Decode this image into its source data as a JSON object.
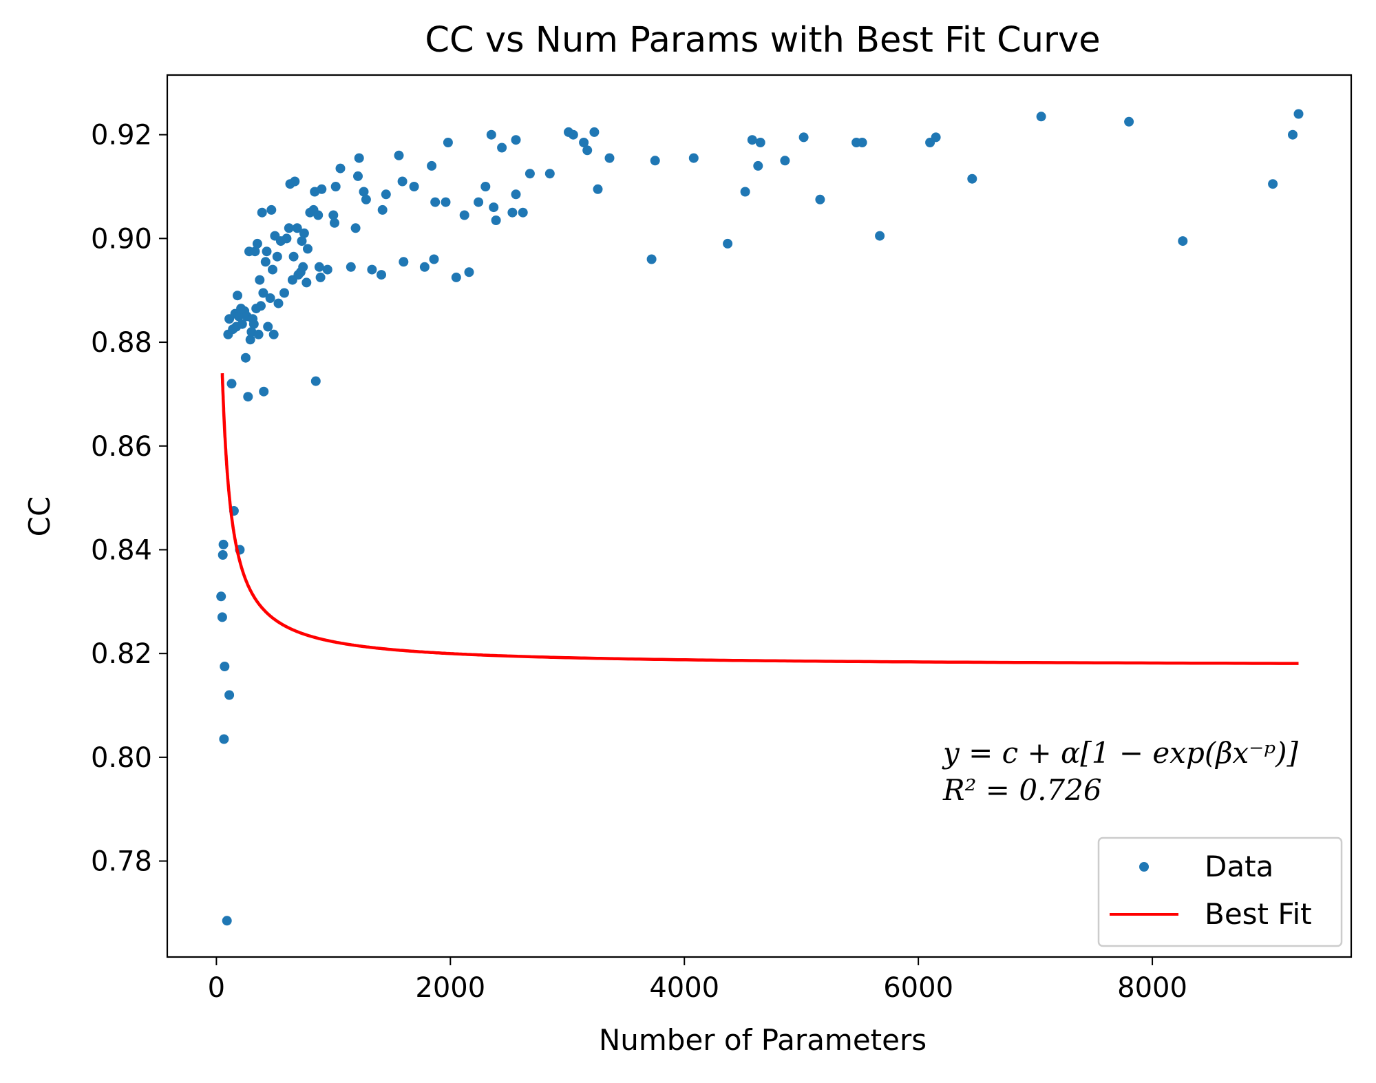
{
  "chart_data": {
    "type": "scatter",
    "title": "CC vs Num Params with Best Fit Curve",
    "xlabel": "Number of Parameters",
    "ylabel": "CC",
    "xlim": [
      -420,
      9700
    ],
    "ylim": [
      0.7615,
      0.9315
    ],
    "xticks": [
      0,
      2000,
      4000,
      6000,
      8000
    ],
    "xtick_labels": [
      "0",
      "2000",
      "4000",
      "6000",
      "8000"
    ],
    "yticks": [
      0.78,
      0.8,
      0.82,
      0.84,
      0.86,
      0.88,
      0.9,
      0.92
    ],
    "ytick_labels": [
      "0.78",
      "0.80",
      "0.82",
      "0.84",
      "0.86",
      "0.88",
      "0.90",
      "0.92"
    ],
    "grid": false,
    "legend_position": "lower-right",
    "colors": {
      "data": "#1f77b4",
      "fit": "#ff0000"
    },
    "annotation": {
      "equation": "y = c + α[1 − exp(βx⁻ᵖ)]",
      "r2": "R² = 0.726"
    },
    "series": [
      {
        "name": "Data",
        "kind": "scatter",
        "points": [
          [
            40,
            0.831
          ],
          [
            50,
            0.827
          ],
          [
            55,
            0.839
          ],
          [
            60,
            0.841
          ],
          [
            65,
            0.8035
          ],
          [
            70,
            0.8175
          ],
          [
            90,
            0.7685
          ],
          [
            110,
            0.812
          ],
          [
            100,
            0.8815
          ],
          [
            110,
            0.8845
          ],
          [
            130,
            0.872
          ],
          [
            140,
            0.8825
          ],
          [
            150,
            0.8475
          ],
          [
            160,
            0.8855
          ],
          [
            170,
            0.883
          ],
          [
            180,
            0.889
          ],
          [
            190,
            0.885
          ],
          [
            200,
            0.84
          ],
          [
            210,
            0.8865
          ],
          [
            220,
            0.8835
          ],
          [
            240,
            0.886
          ],
          [
            250,
            0.877
          ],
          [
            260,
            0.885
          ],
          [
            270,
            0.8695
          ],
          [
            280,
            0.8975
          ],
          [
            290,
            0.8805
          ],
          [
            300,
            0.882
          ],
          [
            310,
            0.8845
          ],
          [
            320,
            0.8835
          ],
          [
            330,
            0.8975
          ],
          [
            340,
            0.8865
          ],
          [
            350,
            0.899
          ],
          [
            360,
            0.8815
          ],
          [
            370,
            0.892
          ],
          [
            380,
            0.887
          ],
          [
            390,
            0.905
          ],
          [
            400,
            0.8895
          ],
          [
            405,
            0.8705
          ],
          [
            420,
            0.8955
          ],
          [
            430,
            0.8975
          ],
          [
            440,
            0.883
          ],
          [
            460,
            0.8885
          ],
          [
            470,
            0.9055
          ],
          [
            480,
            0.894
          ],
          [
            490,
            0.8815
          ],
          [
            500,
            0.9005
          ],
          [
            520,
            0.8965
          ],
          [
            530,
            0.8875
          ],
          [
            550,
            0.8995
          ],
          [
            580,
            0.8895
          ],
          [
            600,
            0.9
          ],
          [
            620,
            0.902
          ],
          [
            630,
            0.9105
          ],
          [
            650,
            0.892
          ],
          [
            660,
            0.8965
          ],
          [
            670,
            0.911
          ],
          [
            690,
            0.902
          ],
          [
            700,
            0.893
          ],
          [
            720,
            0.8935
          ],
          [
            730,
            0.8995
          ],
          [
            740,
            0.8945
          ],
          [
            750,
            0.901
          ],
          [
            770,
            0.8915
          ],
          [
            780,
            0.898
          ],
          [
            800,
            0.905
          ],
          [
            830,
            0.9055
          ],
          [
            840,
            0.909
          ],
          [
            850,
            0.8725
          ],
          [
            870,
            0.9045
          ],
          [
            880,
            0.8945
          ],
          [
            890,
            0.8925
          ],
          [
            900,
            0.9095
          ],
          [
            950,
            0.894
          ],
          [
            1000,
            0.9045
          ],
          [
            1010,
            0.903
          ],
          [
            1020,
            0.91
          ],
          [
            1060,
            0.9135
          ],
          [
            1150,
            0.8945
          ],
          [
            1190,
            0.902
          ],
          [
            1210,
            0.912
          ],
          [
            1220,
            0.9155
          ],
          [
            1260,
            0.909
          ],
          [
            1280,
            0.9075
          ],
          [
            1330,
            0.894
          ],
          [
            1410,
            0.893
          ],
          [
            1420,
            0.9055
          ],
          [
            1450,
            0.9085
          ],
          [
            1560,
            0.916
          ],
          [
            1590,
            0.911
          ],
          [
            1600,
            0.8955
          ],
          [
            1690,
            0.91
          ],
          [
            1780,
            0.8945
          ],
          [
            1840,
            0.914
          ],
          [
            1860,
            0.896
          ],
          [
            1870,
            0.907
          ],
          [
            1960,
            0.907
          ],
          [
            1980,
            0.9185
          ],
          [
            2050,
            0.8925
          ],
          [
            2120,
            0.9045
          ],
          [
            2160,
            0.8935
          ],
          [
            2240,
            0.907
          ],
          [
            2300,
            0.91
          ],
          [
            2350,
            0.92
          ],
          [
            2370,
            0.906
          ],
          [
            2390,
            0.9035
          ],
          [
            2440,
            0.9175
          ],
          [
            2530,
            0.905
          ],
          [
            2560,
            0.9085
          ],
          [
            2560,
            0.919
          ],
          [
            2620,
            0.905
          ],
          [
            2680,
            0.9125
          ],
          [
            2850,
            0.9125
          ],
          [
            3010,
            0.9205
          ],
          [
            3050,
            0.92
          ],
          [
            3140,
            0.9185
          ],
          [
            3170,
            0.917
          ],
          [
            3230,
            0.9205
          ],
          [
            3260,
            0.9095
          ],
          [
            3360,
            0.9155
          ],
          [
            3720,
            0.896
          ],
          [
            3750,
            0.915
          ],
          [
            4080,
            0.9155
          ],
          [
            4370,
            0.899
          ],
          [
            4520,
            0.909
          ],
          [
            4580,
            0.919
          ],
          [
            4630,
            0.914
          ],
          [
            4650,
            0.9185
          ],
          [
            4860,
            0.915
          ],
          [
            5020,
            0.9195
          ],
          [
            5160,
            0.9075
          ],
          [
            5470,
            0.9185
          ],
          [
            5520,
            0.9185
          ],
          [
            5670,
            0.9005
          ],
          [
            6100,
            0.9185
          ],
          [
            6150,
            0.9195
          ],
          [
            6460,
            0.9115
          ],
          [
            7050,
            0.9235
          ],
          [
            7800,
            0.9225
          ],
          [
            8260,
            0.8995
          ],
          [
            9030,
            0.9105
          ],
          [
            9200,
            0.92
          ],
          [
            9250,
            0.924
          ]
        ]
      },
      {
        "name": "Best Fit",
        "kind": "line",
        "model": {
          "c": 0.8175,
          "alpha": 0.095,
          "beta": -38.12,
          "p": 0.9565,
          "x_start": 50,
          "x_end": 9250
        }
      }
    ]
  }
}
